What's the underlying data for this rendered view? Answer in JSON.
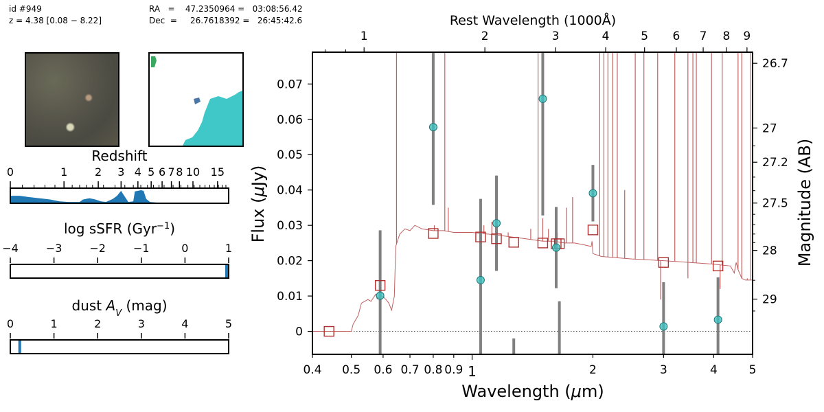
{
  "header": {
    "id_line": "id #949",
    "z_line": "z = 4.38 [0.08 − 8.22]",
    "ra_line": "RA   =    47.2350964 =   03:08:56.42",
    "dec_line": "Dec  =     26.7618392 =   26:45:42.6"
  },
  "panels": {
    "redshift": {
      "title": "Redshift",
      "ticks": [
        "0",
        "1",
        "2",
        "3",
        "4",
        "5",
        "6",
        "7",
        "8",
        "10",
        "15"
      ]
    },
    "ssfr": {
      "title": "log sSFR (Gyr⁻¹)",
      "ticks": [
        "−4",
        "−3",
        "−2",
        "−1",
        "0",
        "1"
      ],
      "range": [
        -4,
        1
      ],
      "value": 0.98
    },
    "dust": {
      "title": "dust A_V (mag)",
      "ticks": [
        "0",
        "1",
        "2",
        "3",
        "4",
        "5"
      ],
      "range": [
        0,
        5
      ],
      "value": 0.2
    }
  },
  "colors": {
    "model": "#c06060",
    "obs_face": "#40c0c0",
    "model_phot": "#b03030",
    "errorbar": "#808080",
    "pz_fill": "#1f77b4",
    "segmap": "#40c8c8"
  },
  "chart_data": {
    "type": "scatter",
    "xlabel": "Wavelength (μm)",
    "ylabel": "Flux (μJy)",
    "top_xlabel": "Rest Wavelength (1000Å)",
    "right_ylabel": "Magnitude (AB)",
    "xscale": "log",
    "xlim": [
      0.4,
      5.0
    ],
    "ylim": [
      -0.0065,
      0.079
    ],
    "x_ticks": [
      0.4,
      0.5,
      0.6,
      0.7,
      0.8,
      0.9,
      1,
      2,
      3,
      4,
      5
    ],
    "x_tick_labels": [
      "0.4",
      "0.5",
      "0.6",
      "0.7",
      "0.8",
      "0.9",
      "1",
      "2",
      "3",
      "4",
      "5"
    ],
    "y_ticks": [
      0,
      0.01,
      0.02,
      0.03,
      0.04,
      0.05,
      0.06,
      0.07
    ],
    "y_tick_labels": [
      "0",
      "0.01",
      "0.02",
      "0.03",
      "0.04",
      "0.05",
      "0.06",
      "0.07"
    ],
    "top_ticks": [
      1,
      2,
      3,
      4,
      5,
      6,
      7,
      8,
      9
    ],
    "top_tick_labels": [
      "1",
      "2",
      "3",
      "4",
      "5",
      "6",
      "7",
      "8",
      "9"
    ],
    "right_ticks": [
      26.7,
      27,
      27.2,
      27.5,
      28,
      29
    ],
    "right_tick_labels": [
      "26.7",
      "27",
      "27.2",
      "27.5",
      "28",
      "29"
    ],
    "observed": [
      {
        "x": 0.59,
        "y": 0.0101,
        "err": 0.0185
      },
      {
        "x": 0.8,
        "y": 0.0578,
        "err": 0.022
      },
      {
        "x": 1.05,
        "y": 0.0145,
        "err": 0.023
      },
      {
        "x": 1.15,
        "y": 0.0306,
        "err": 0.0135
      },
      {
        "x": 1.27,
        "y": -0.006,
        "err": 0.004
      },
      {
        "x": 1.5,
        "y": 0.0658,
        "err": 0.033
      },
      {
        "x": 1.62,
        "y": 0.0237,
        "err": 0.0115
      },
      {
        "x": 1.65,
        "y": -0.006,
        "err": 0.0145
      },
      {
        "x": 2.0,
        "y": 0.0391,
        "err": 0.008
      },
      {
        "x": 3.0,
        "y": 0.0014,
        "err": 0.0125
      },
      {
        "x": 4.1,
        "y": 0.0033,
        "err": 0.012
      }
    ],
    "model_photometry": [
      {
        "x": 0.44,
        "y": 0.0
      },
      {
        "x": 0.59,
        "y": 0.013
      },
      {
        "x": 0.8,
        "y": 0.0277
      },
      {
        "x": 1.05,
        "y": 0.0267
      },
      {
        "x": 1.15,
        "y": 0.0262
      },
      {
        "x": 1.27,
        "y": 0.0252
      },
      {
        "x": 1.5,
        "y": 0.025
      },
      {
        "x": 1.62,
        "y": 0.0248
      },
      {
        "x": 1.65,
        "y": 0.0248
      },
      {
        "x": 2.0,
        "y": 0.0287
      },
      {
        "x": 3.0,
        "y": 0.0195
      },
      {
        "x": 4.1,
        "y": 0.0185
      }
    ],
    "model_spectrum": [
      [
        0.4,
        0.0
      ],
      [
        0.5,
        0.0
      ],
      [
        0.505,
        0.002
      ],
      [
        0.52,
        0.0045
      ],
      [
        0.53,
        0.008
      ],
      [
        0.55,
        0.009
      ],
      [
        0.56,
        0.0085
      ],
      [
        0.575,
        0.0105
      ],
      [
        0.58,
        0.0092
      ],
      [
        0.59,
        0.01
      ],
      [
        0.6,
        0.0098
      ],
      [
        0.61,
        0.009
      ],
      [
        0.62,
        0.008
      ],
      [
        0.63,
        0.006
      ],
      [
        0.64,
        0.01
      ],
      [
        0.645,
        0.024
      ],
      [
        0.66,
        0.0275
      ],
      [
        0.68,
        0.029
      ],
      [
        0.7,
        0.0285
      ],
      [
        0.72,
        0.03
      ],
      [
        0.75,
        0.029
      ],
      [
        0.8,
        0.0285
      ],
      [
        0.85,
        0.0285
      ],
      [
        0.9,
        0.028
      ],
      [
        1.0,
        0.028
      ],
      [
        1.1,
        0.0275
      ],
      [
        1.2,
        0.027
      ],
      [
        1.3,
        0.0265
      ],
      [
        1.4,
        0.026
      ],
      [
        1.5,
        0.0255
      ],
      [
        1.6,
        0.0255
      ],
      [
        1.7,
        0.025
      ],
      [
        1.8,
        0.025
      ],
      [
        1.9,
        0.0245
      ],
      [
        1.98,
        0.024
      ],
      [
        1.99,
        0.0255
      ],
      [
        2.0,
        0.022
      ],
      [
        2.1,
        0.0212
      ],
      [
        2.5,
        0.0205
      ],
      [
        3.0,
        0.02
      ],
      [
        3.5,
        0.0195
      ],
      [
        4.0,
        0.019
      ],
      [
        4.4,
        0.0185
      ],
      [
        4.5,
        0.0165
      ],
      [
        4.55,
        0.0195
      ],
      [
        4.6,
        0.0175
      ],
      [
        4.7,
        0.015
      ],
      [
        4.8,
        0.0145
      ],
      [
        5.0,
        0.0145
      ]
    ],
    "emission_lines": [
      {
        "x": 0.648,
        "y": 0.079
      },
      {
        "x": 0.805,
        "y": 0.03
      },
      {
        "x": 0.855,
        "y": 0.079
      },
      {
        "x": 0.872,
        "y": 0.035
      },
      {
        "x": 1.07,
        "y": 0.03
      },
      {
        "x": 1.12,
        "y": 0.031
      },
      {
        "x": 1.23,
        "y": 0.028
      },
      {
        "x": 1.4,
        "y": 0.029
      },
      {
        "x": 1.46,
        "y": 0.079
      },
      {
        "x": 1.5,
        "y": 0.032
      },
      {
        "x": 1.55,
        "y": 0.029
      },
      {
        "x": 1.63,
        "y": 0.028
      },
      {
        "x": 1.72,
        "y": 0.035
      },
      {
        "x": 1.78,
        "y": 0.038
      },
      {
        "x": 2.08,
        "y": 0.079
      },
      {
        "x": 2.13,
        "y": 0.079
      },
      {
        "x": 2.18,
        "y": 0.079
      },
      {
        "x": 2.24,
        "y": 0.079
      },
      {
        "x": 2.3,
        "y": 0.079
      },
      {
        "x": 2.4,
        "y": 0.04
      },
      {
        "x": 2.55,
        "y": 0.079
      },
      {
        "x": 2.68,
        "y": 0.079
      },
      {
        "x": 2.9,
        "y": 0.079
      },
      {
        "x": 3.2,
        "y": 0.079
      },
      {
        "x": 3.45,
        "y": 0.079
      },
      {
        "x": 3.55,
        "y": 0.079
      },
      {
        "x": 3.62,
        "y": 0.079
      },
      {
        "x": 3.95,
        "y": 0.079
      },
      {
        "x": 4.2,
        "y": 0.079
      },
      {
        "x": 4.6,
        "y": 0.079
      },
      {
        "x": 4.7,
        "y": 0.079
      },
      {
        "x": 4.95,
        "y": 0.079
      }
    ],
    "absorption_lines": [
      {
        "x": 2.95,
        "y": 0.009
      },
      {
        "x": 3.45,
        "y": 0.015
      },
      {
        "x": 4.15,
        "y": 0.012
      },
      {
        "x": 4.85,
        "y": 0.015
      }
    ]
  },
  "redshift_pdf": [
    [
      0.0,
      0.55
    ],
    [
      0.15,
      0.55
    ],
    [
      0.3,
      0.45
    ],
    [
      0.5,
      0.35
    ],
    [
      0.7,
      0.25
    ],
    [
      0.9,
      0.1
    ],
    [
      1.1,
      0.05
    ],
    [
      1.4,
      0.05
    ],
    [
      1.5,
      0.25
    ],
    [
      1.7,
      0.35
    ],
    [
      1.9,
      0.25
    ],
    [
      2.1,
      0.1
    ],
    [
      2.3,
      0.05
    ],
    [
      2.6,
      0.3
    ],
    [
      2.8,
      0.55
    ],
    [
      3.0,
      0.95
    ],
    [
      3.1,
      0.7
    ],
    [
      3.4,
      0.05
    ],
    [
      3.7,
      0.1
    ],
    [
      3.8,
      0.9
    ],
    [
      4.2,
      1.0
    ],
    [
      4.4,
      0.95
    ],
    [
      4.6,
      0.3
    ],
    [
      4.9,
      0.05
    ],
    [
      5.5,
      0.0
    ]
  ]
}
